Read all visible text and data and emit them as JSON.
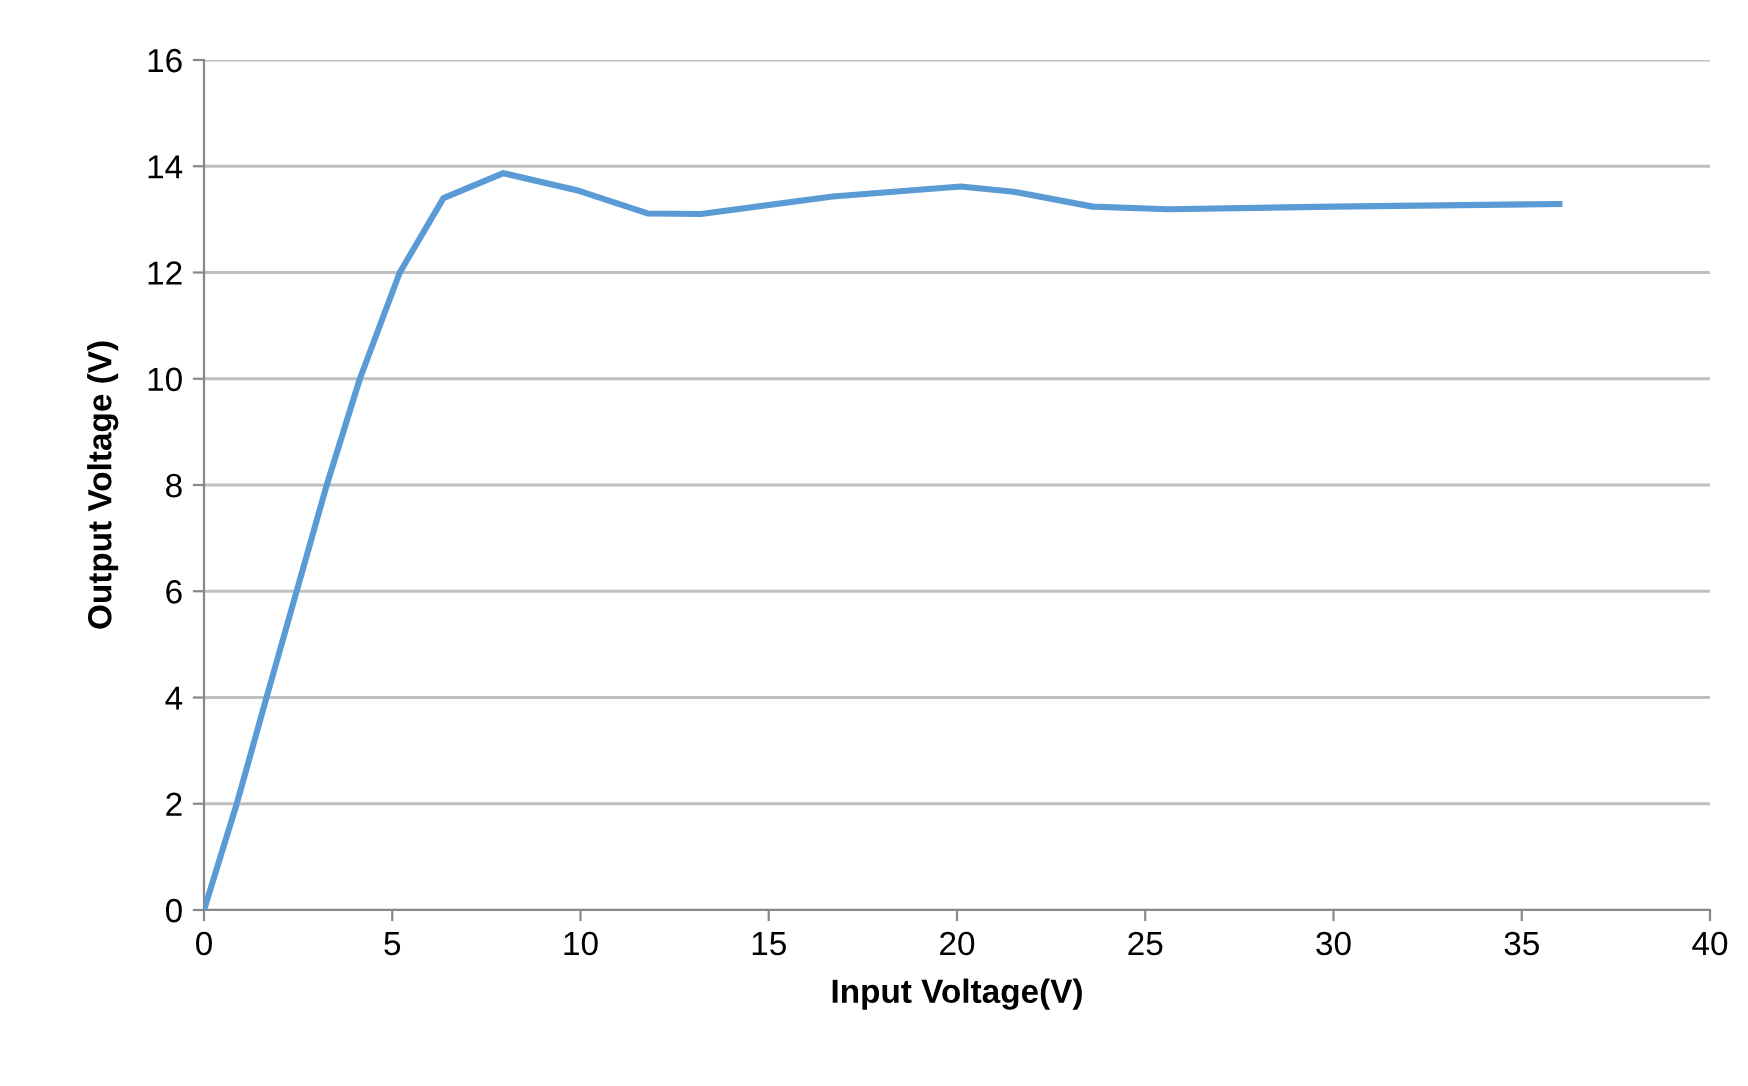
{
  "chart_data": {
    "type": "line",
    "xlabel": "Input Voltage(V)",
    "ylabel": "Output Voltage (V)",
    "xlim": [
      0,
      40
    ],
    "xticks": [
      0,
      5,
      10,
      15,
      20,
      25,
      30,
      35,
      40
    ],
    "ylim": [
      0,
      16
    ],
    "yticks": [
      0,
      2,
      4,
      6,
      8,
      10,
      12,
      14,
      16
    ],
    "grid": "y",
    "marker": "none",
    "line_style": "solid",
    "series": [
      {
        "color": "#5b9bd5",
        "x": [
          0,
          0.87,
          1.66,
          2.46,
          3.26,
          4.14,
          5.2,
          6.36,
          7.95,
          9.9,
          11.8,
          13.2,
          16.7,
          20.1,
          21.5,
          23.6,
          25.6,
          30,
          36
        ],
        "values": [
          0,
          2,
          4,
          6,
          8,
          10,
          12,
          13.4,
          13.87,
          13.55,
          13.11,
          13.1,
          13.43,
          13.62,
          13.52,
          13.24,
          13.19,
          13.24,
          13.29
        ]
      }
    ]
  }
}
